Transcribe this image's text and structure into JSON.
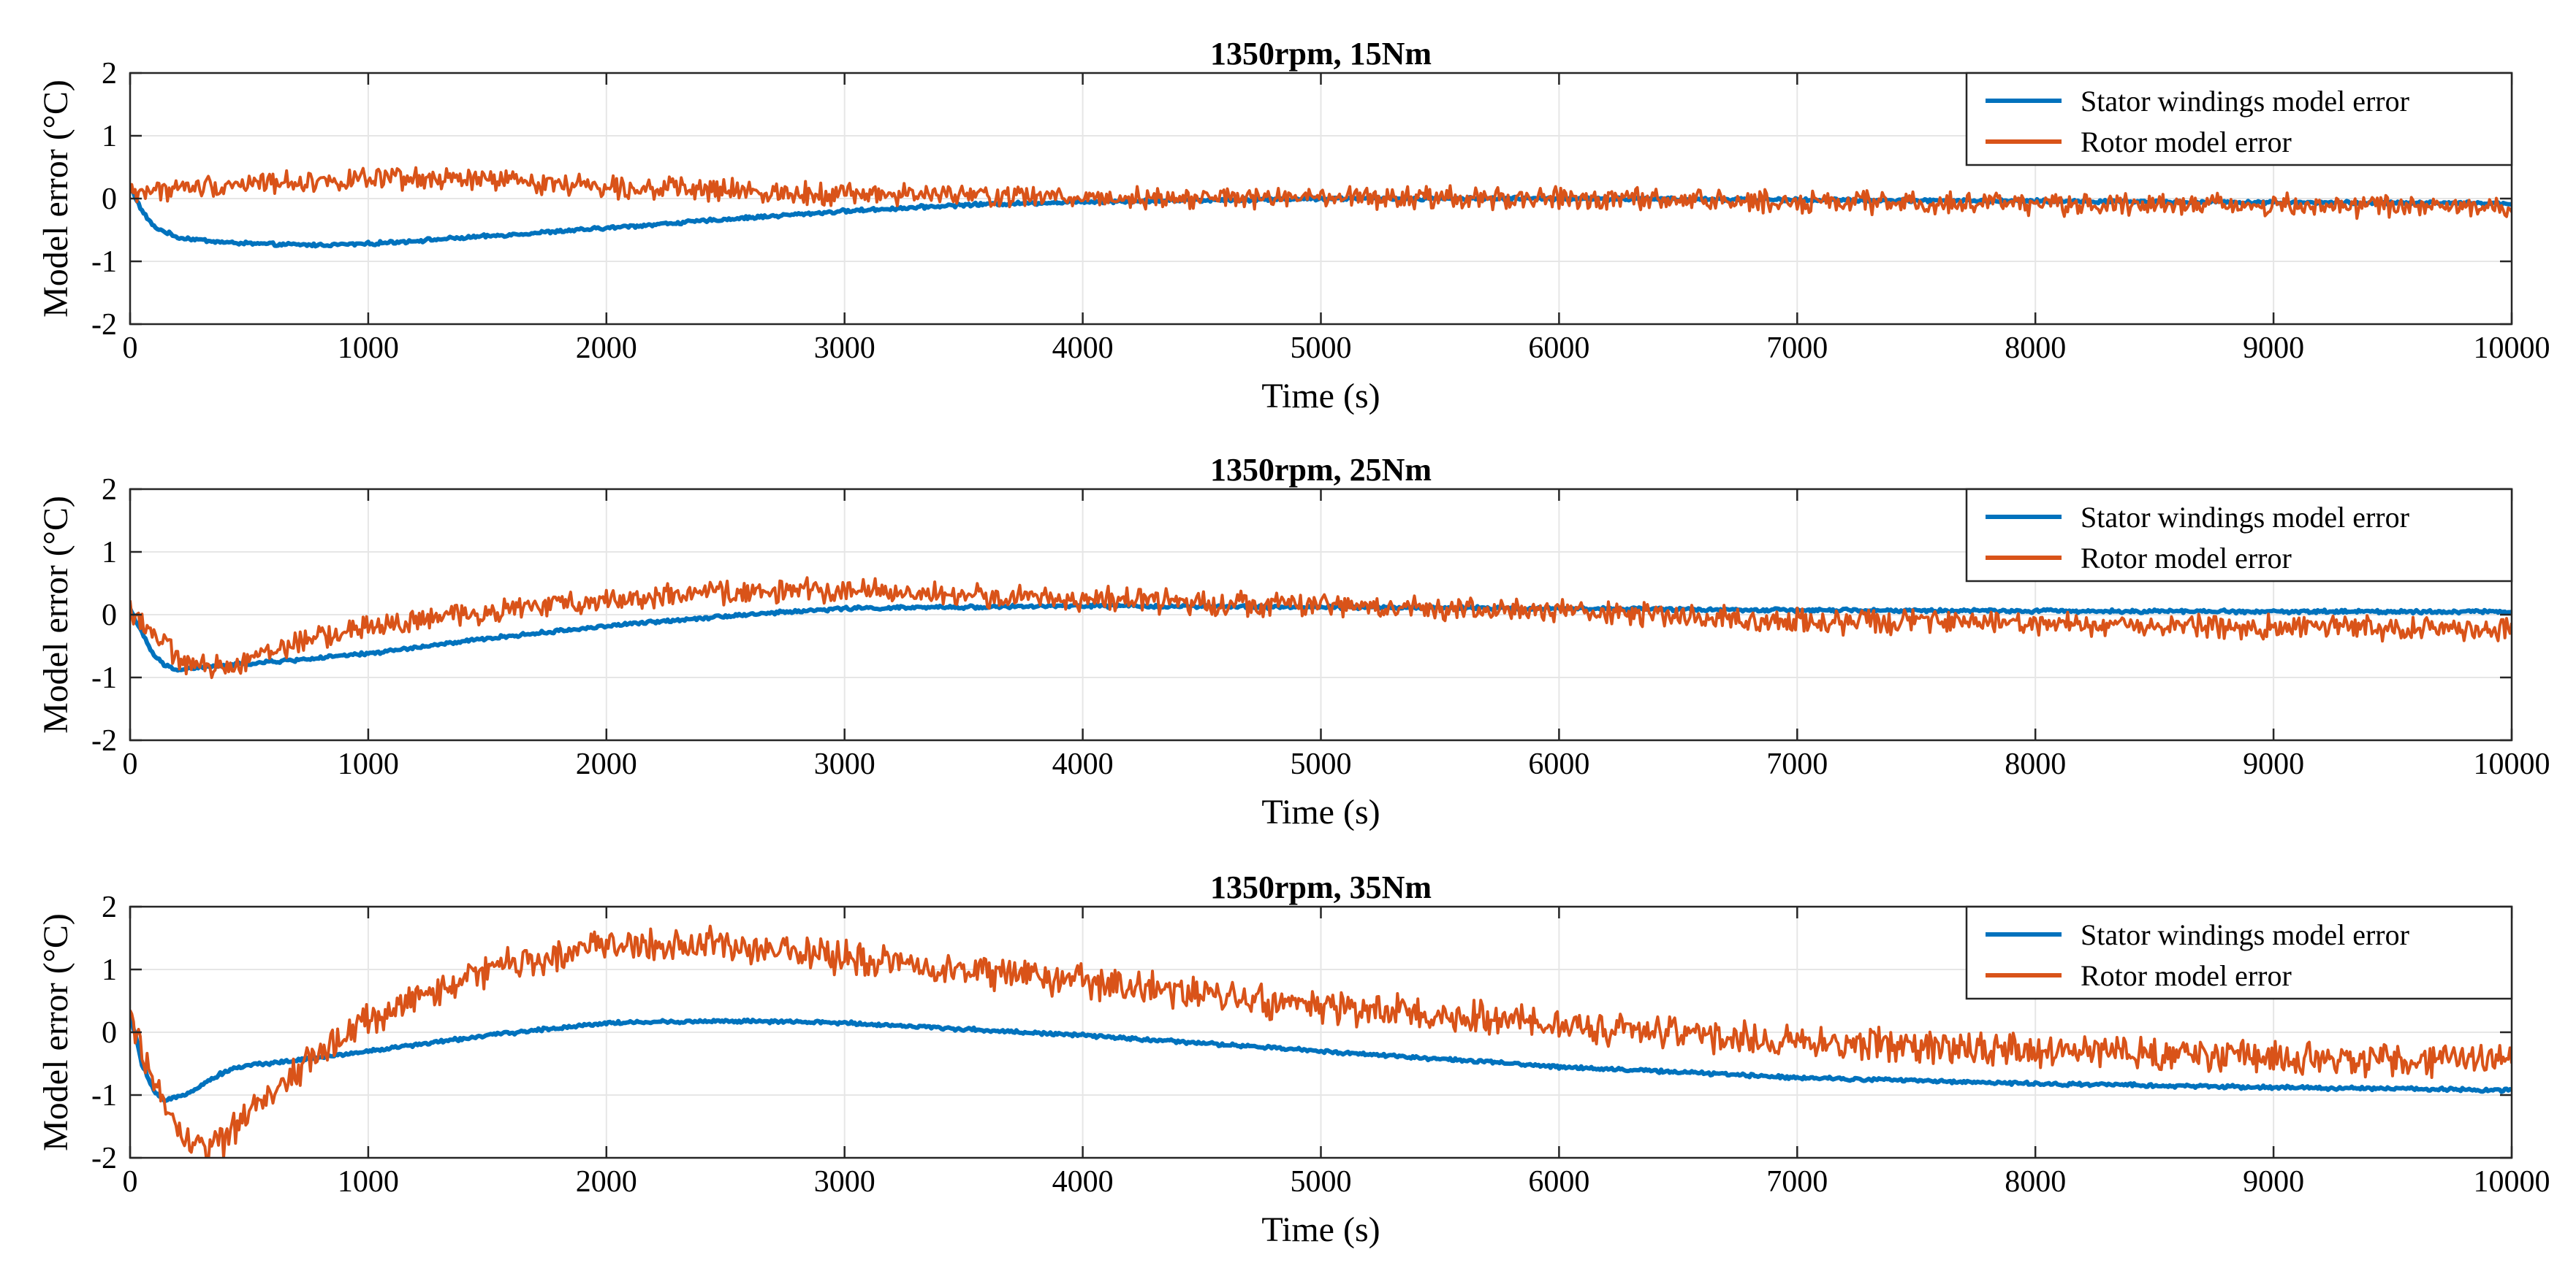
{
  "colors": {
    "stator": "#0072BD",
    "rotor": "#D95319"
  },
  "chart_data": [
    {
      "type": "line",
      "title": "1350rpm, 15Nm",
      "xlabel": "Time (s)",
      "ylabel": "Model error (°C)",
      "xlim": [
        0,
        10000
      ],
      "ylim": [
        -2,
        2
      ],
      "xticks": [
        0,
        1000,
        2000,
        3000,
        4000,
        5000,
        6000,
        7000,
        8000,
        9000,
        10000
      ],
      "yticks": [
        -2,
        -1,
        0,
        1,
        2
      ],
      "grid": true,
      "legend_position": "top-right",
      "series": [
        {
          "name": "Stator windings model error",
          "color_key": "stator",
          "x": [
            0,
            50,
            100,
            200,
            400,
            600,
            800,
            1000,
            1500,
            2000,
            2500,
            3000,
            3500,
            4000,
            5000,
            6000,
            7000,
            8000,
            9000,
            10000
          ],
          "y": [
            0.2,
            -0.2,
            -0.45,
            -0.62,
            -0.7,
            -0.73,
            -0.74,
            -0.72,
            -0.6,
            -0.47,
            -0.33,
            -0.2,
            -0.1,
            -0.05,
            0.0,
            0.0,
            -0.02,
            -0.04,
            -0.06,
            -0.08
          ],
          "noise": 0.02
        },
        {
          "name": "Rotor model error",
          "color_key": "rotor",
          "x": [
            0,
            500,
            1000,
            1500,
            2000,
            2500,
            3000,
            3500,
            4000,
            5000,
            6000,
            7000,
            8000,
            9000,
            10000
          ],
          "y": [
            0.1,
            0.25,
            0.3,
            0.3,
            0.2,
            0.12,
            0.08,
            0.05,
            0.02,
            0.0,
            0.0,
            -0.05,
            -0.08,
            -0.1,
            -0.15
          ],
          "noise": 0.13
        }
      ]
    },
    {
      "type": "line",
      "title": "1350rpm, 25Nm",
      "xlabel": "Time (s)",
      "ylabel": "Model error (°C)",
      "xlim": [
        0,
        10000
      ],
      "ylim": [
        -2,
        2
      ],
      "xticks": [
        0,
        1000,
        2000,
        3000,
        4000,
        5000,
        6000,
        7000,
        8000,
        9000,
        10000
      ],
      "yticks": [
        -2,
        -1,
        0,
        1,
        2
      ],
      "grid": true,
      "legend_position": "top-right",
      "series": [
        {
          "name": "Stator windings model error",
          "color_key": "stator",
          "x": [
            0,
            50,
            100,
            150,
            200,
            300,
            500,
            700,
            1000,
            1500,
            2000,
            2500,
            3000,
            3500,
            4000,
            5000,
            6000,
            7000,
            8000,
            9000,
            10000
          ],
          "y": [
            0.1,
            -0.3,
            -0.65,
            -0.82,
            -0.88,
            -0.84,
            -0.78,
            -0.72,
            -0.62,
            -0.38,
            -0.18,
            -0.02,
            0.1,
            0.12,
            0.14,
            0.12,
            0.1,
            0.07,
            0.06,
            0.05,
            0.05
          ],
          "noise": 0.02
        },
        {
          "name": "Rotor model error",
          "color_key": "rotor",
          "x": [
            0,
            100,
            200,
            300,
            400,
            600,
            800,
            1000,
            1500,
            2000,
            2500,
            3000,
            3500,
            4000,
            5000,
            6000,
            7000,
            8000,
            9000,
            10000
          ],
          "y": [
            0.1,
            -0.3,
            -0.7,
            -0.85,
            -0.82,
            -0.55,
            -0.35,
            -0.2,
            0.05,
            0.25,
            0.35,
            0.4,
            0.3,
            0.25,
            0.15,
            0.05,
            -0.1,
            -0.15,
            -0.2,
            -0.22
          ],
          "noise": 0.14
        }
      ]
    },
    {
      "type": "line",
      "title": "1350rpm, 35Nm",
      "xlabel": "Time (s)",
      "ylabel": "Model error (°C)",
      "xlim": [
        0,
        10000
      ],
      "ylim": [
        -2,
        2
      ],
      "xticks": [
        0,
        1000,
        2000,
        3000,
        4000,
        5000,
        6000,
        7000,
        8000,
        9000,
        10000
      ],
      "yticks": [
        -2,
        -1,
        0,
        1,
        2
      ],
      "grid": true,
      "legend_position": "top-right",
      "series": [
        {
          "name": "Stator windings model error",
          "color_key": "stator",
          "x": [
            0,
            50,
            100,
            150,
            250,
            400,
            500,
            700,
            1000,
            1500,
            2000,
            2500,
            3000,
            3500,
            4000,
            5000,
            6000,
            7000,
            8000,
            9000,
            10000
          ],
          "y": [
            0.3,
            -0.5,
            -0.95,
            -1.1,
            -0.95,
            -0.62,
            -0.52,
            -0.45,
            -0.3,
            -0.05,
            0.15,
            0.18,
            0.15,
            0.05,
            -0.05,
            -0.3,
            -0.55,
            -0.72,
            -0.82,
            -0.88,
            -0.92
          ],
          "noise": 0.02
        },
        {
          "name": "Rotor model error",
          "color_key": "rotor",
          "x": [
            0,
            100,
            200,
            300,
            400,
            500,
            700,
            1000,
            1500,
            2000,
            2500,
            3000,
            3500,
            4000,
            5000,
            6000,
            7000,
            8000,
            9000,
            10000
          ],
          "y": [
            0.2,
            -0.8,
            -1.6,
            -1.85,
            -1.7,
            -1.3,
            -0.6,
            0.2,
            1.0,
            1.4,
            1.4,
            1.2,
            1.0,
            0.8,
            0.4,
            0.1,
            -0.15,
            -0.3,
            -0.4,
            -0.45
          ],
          "noise": 0.2
        }
      ]
    }
  ]
}
